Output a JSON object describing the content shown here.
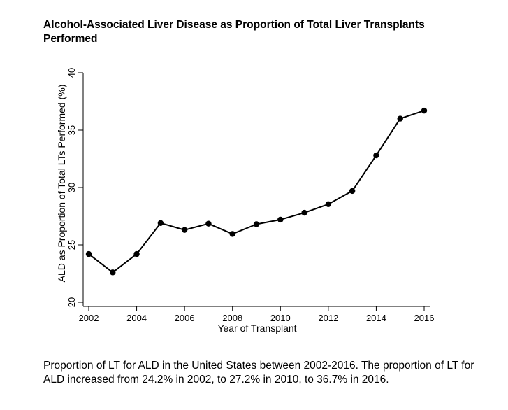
{
  "title": "Alcohol-Associated Liver Disease as Proportion of Total Liver Transplants Performed",
  "caption": "Proportion of LT for ALD in the United States between 2002-2016. The proportion of LT for ALD increased from 24.2% in 2002, to 27.2% in 2010, to 36.7% in 2016.",
  "chart_data": {
    "type": "line",
    "title": "Alcohol-Associated Liver Disease as Proportion of Total Liver Transplants Performed",
    "xlabel": "Year of Transplant",
    "ylabel": "ALD as Proportion of Total LTs Performed (%)",
    "xlim": [
      2002,
      2016
    ],
    "ylim": [
      20,
      40
    ],
    "xticks": [
      "2002",
      "2004",
      "2006",
      "2008",
      "2010",
      "2012",
      "2014",
      "2016"
    ],
    "yticks": [
      "20",
      "25",
      "30",
      "35",
      "40"
    ],
    "grid": false,
    "markers": true,
    "color": "#000000",
    "series": [
      {
        "x": [
          2002,
          2003,
          2004,
          2005,
          2006,
          2007,
          2008,
          2009,
          2010,
          2011,
          2012,
          2013,
          2014,
          2015,
          2016
        ],
        "values": [
          24.2,
          22.6,
          24.2,
          26.9,
          26.3,
          26.85,
          25.95,
          26.8,
          27.2,
          27.8,
          28.55,
          29.7,
          32.8,
          36.0,
          36.7
        ]
      }
    ]
  }
}
